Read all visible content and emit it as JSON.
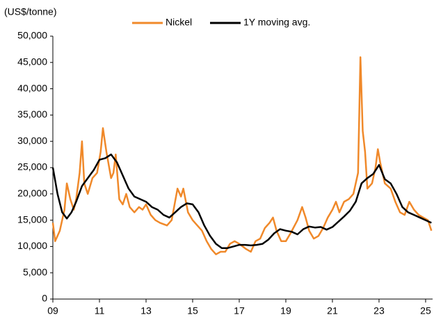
{
  "chart_data": {
    "type": "line",
    "y_label": "(US$/tonne)",
    "legend": "top",
    "xlim": [
      2009,
      2025.3
    ],
    "xticks": [
      {
        "value": 2009,
        "label": "09"
      },
      {
        "value": 2011,
        "label": "11"
      },
      {
        "value": 2013,
        "label": "13"
      },
      {
        "value": 2015,
        "label": "15"
      },
      {
        "value": 2017,
        "label": "17"
      },
      {
        "value": 2019,
        "label": "19"
      },
      {
        "value": 2021,
        "label": "21"
      },
      {
        "value": 2023,
        "label": "23"
      },
      {
        "value": 2025,
        "label": "25"
      }
    ],
    "ylim": [
      0,
      50000
    ],
    "yticks": [
      0,
      {
        "value": 5000,
        "label": "5,000"
      },
      {
        "value": 10000,
        "label": "10,000"
      },
      {
        "value": 15000,
        "label": "15,000"
      },
      {
        "value": 20000,
        "label": "20,000"
      },
      {
        "value": 25000,
        "label": "25,000"
      },
      {
        "value": 30000,
        "label": "30,000"
      },
      {
        "value": 35000,
        "label": "35,000"
      },
      {
        "value": 40000,
        "label": "40,000"
      },
      {
        "value": 45000,
        "label": "45,000"
      },
      {
        "value": 50000,
        "label": "50,000"
      }
    ],
    "series": [
      {
        "name": "Nickel",
        "color": "#f0892a",
        "width": 2.5,
        "x": [
          2009.0,
          2009.1,
          2009.3,
          2009.5,
          2009.6,
          2009.75,
          2009.9,
          2010.0,
          2010.15,
          2010.25,
          2010.35,
          2010.5,
          2010.7,
          2010.9,
          2011.05,
          2011.15,
          2011.3,
          2011.5,
          2011.6,
          2011.7,
          2011.85,
          2012.0,
          2012.15,
          2012.3,
          2012.5,
          2012.7,
          2012.85,
          2013.0,
          2013.2,
          2013.4,
          2013.6,
          2013.9,
          2014.1,
          2014.35,
          2014.5,
          2014.6,
          2014.8,
          2015.0,
          2015.2,
          2015.4,
          2015.6,
          2015.8,
          2016.0,
          2016.2,
          2016.4,
          2016.6,
          2016.8,
          2017.0,
          2017.3,
          2017.5,
          2017.7,
          2017.9,
          2018.1,
          2018.3,
          2018.45,
          2018.6,
          2018.8,
          2019.0,
          2019.2,
          2019.5,
          2019.7,
          2019.85,
          2020.0,
          2020.2,
          2020.4,
          2020.6,
          2020.8,
          2021.0,
          2021.15,
          2021.3,
          2021.5,
          2021.7,
          2021.9,
          2022.1,
          2022.2,
          2022.3,
          2022.4,
          2022.5,
          2022.7,
          2022.85,
          2022.95,
          2023.05,
          2023.25,
          2023.5,
          2023.7,
          2023.9,
          2024.1,
          2024.3,
          2024.5,
          2024.7,
          2024.9,
          2025.1,
          2025.25
        ],
        "values": [
          14500,
          11000,
          13000,
          17000,
          22000,
          19000,
          17000,
          19000,
          24000,
          30000,
          22000,
          20000,
          23000,
          24000,
          28000,
          32500,
          28000,
          23000,
          24000,
          27500,
          19000,
          18000,
          20000,
          17500,
          16500,
          17500,
          17000,
          18000,
          16000,
          15000,
          14500,
          14000,
          15000,
          21000,
          19500,
          21000,
          16500,
          15000,
          14000,
          13000,
          11000,
          9500,
          8500,
          9000,
          9000,
          10500,
          11000,
          10500,
          9500,
          9000,
          11000,
          11500,
          13500,
          14500,
          15500,
          13000,
          11000,
          11000,
          12500,
          15000,
          17500,
          15500,
          13000,
          11500,
          12000,
          13500,
          15500,
          17000,
          18500,
          16500,
          18500,
          19000,
          20000,
          24000,
          46000,
          32000,
          28000,
          21000,
          22000,
          25000,
          28500,
          26000,
          22000,
          21000,
          18500,
          16500,
          16000,
          18500,
          17000,
          16000,
          15500,
          15000,
          13000
        ]
      },
      {
        "name": "1Y moving avg.",
        "color": "#000000",
        "width": 2.5,
        "x": [
          2009.0,
          2009.2,
          2009.4,
          2009.6,
          2009.8,
          2010.0,
          2010.25,
          2010.5,
          2010.75,
          2011.0,
          2011.25,
          2011.5,
          2011.75,
          2012.0,
          2012.25,
          2012.5,
          2012.75,
          2013.0,
          2013.25,
          2013.5,
          2013.75,
          2014.0,
          2014.25,
          2014.5,
          2014.75,
          2015.0,
          2015.25,
          2015.5,
          2015.75,
          2016.0,
          2016.25,
          2016.5,
          2016.75,
          2017.0,
          2017.25,
          2017.5,
          2017.75,
          2018.0,
          2018.25,
          2018.5,
          2018.75,
          2019.0,
          2019.25,
          2019.5,
          2019.75,
          2020.0,
          2020.25,
          2020.5,
          2020.75,
          2021.0,
          2021.25,
          2021.5,
          2021.75,
          2022.0,
          2022.25,
          2022.5,
          2022.75,
          2023.0,
          2023.25,
          2023.5,
          2023.75,
          2024.0,
          2024.25,
          2024.5,
          2024.75,
          2025.0,
          2025.25
        ],
        "values": [
          25000,
          20000,
          16500,
          15300,
          16500,
          18500,
          21500,
          23000,
          24500,
          26500,
          26800,
          27500,
          26000,
          23500,
          21000,
          19500,
          19000,
          18500,
          17500,
          17000,
          16000,
          15500,
          16500,
          17500,
          18200,
          18000,
          16500,
          14000,
          12000,
          10500,
          9700,
          9700,
          10000,
          10300,
          10300,
          10200,
          10300,
          10500,
          11300,
          12500,
          13300,
          13000,
          12800,
          12300,
          13300,
          13800,
          13600,
          13700,
          13200,
          13700,
          14700,
          15700,
          16800,
          18500,
          22000,
          23000,
          23800,
          25500,
          22800,
          22000,
          20000,
          17500,
          16500,
          16000,
          15500,
          15000,
          14500
        ]
      }
    ]
  }
}
